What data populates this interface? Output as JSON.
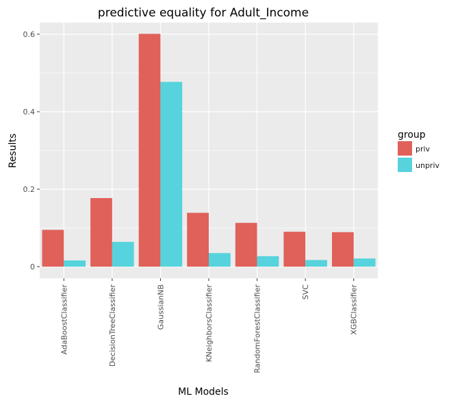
{
  "chart_data": {
    "type": "bar",
    "title": "predictive equality for Adult_Income",
    "xlabel": "ML Models",
    "ylabel": "Results",
    "categories": [
      "AdaBoostClassifier",
      "DecisionTreeClassifier",
      "GaussianNB",
      "KNeighborsClassifier",
      "RandomForestClassifier",
      "SVC",
      "XGBClassifier"
    ],
    "series": [
      {
        "name": "priv",
        "color": "#E0605A",
        "values": [
          0.095,
          0.177,
          0.601,
          0.139,
          0.113,
          0.09,
          0.089
        ]
      },
      {
        "name": "unpriv",
        "color": "#56D3DC",
        "values": [
          0.016,
          0.064,
          0.477,
          0.035,
          0.027,
          0.017,
          0.021
        ]
      }
    ],
    "ylim": [
      -0.03,
      0.63
    ],
    "yticks": [
      0,
      0.2,
      0.4,
      0.6
    ],
    "ytick_labels": [
      "0",
      "0.2",
      "0.4",
      "0.6"
    ],
    "grid": true,
    "legend": {
      "title": "group",
      "position": "right"
    },
    "panel_color": "#EBEBEB",
    "grid_color": "#FFFFFF"
  }
}
